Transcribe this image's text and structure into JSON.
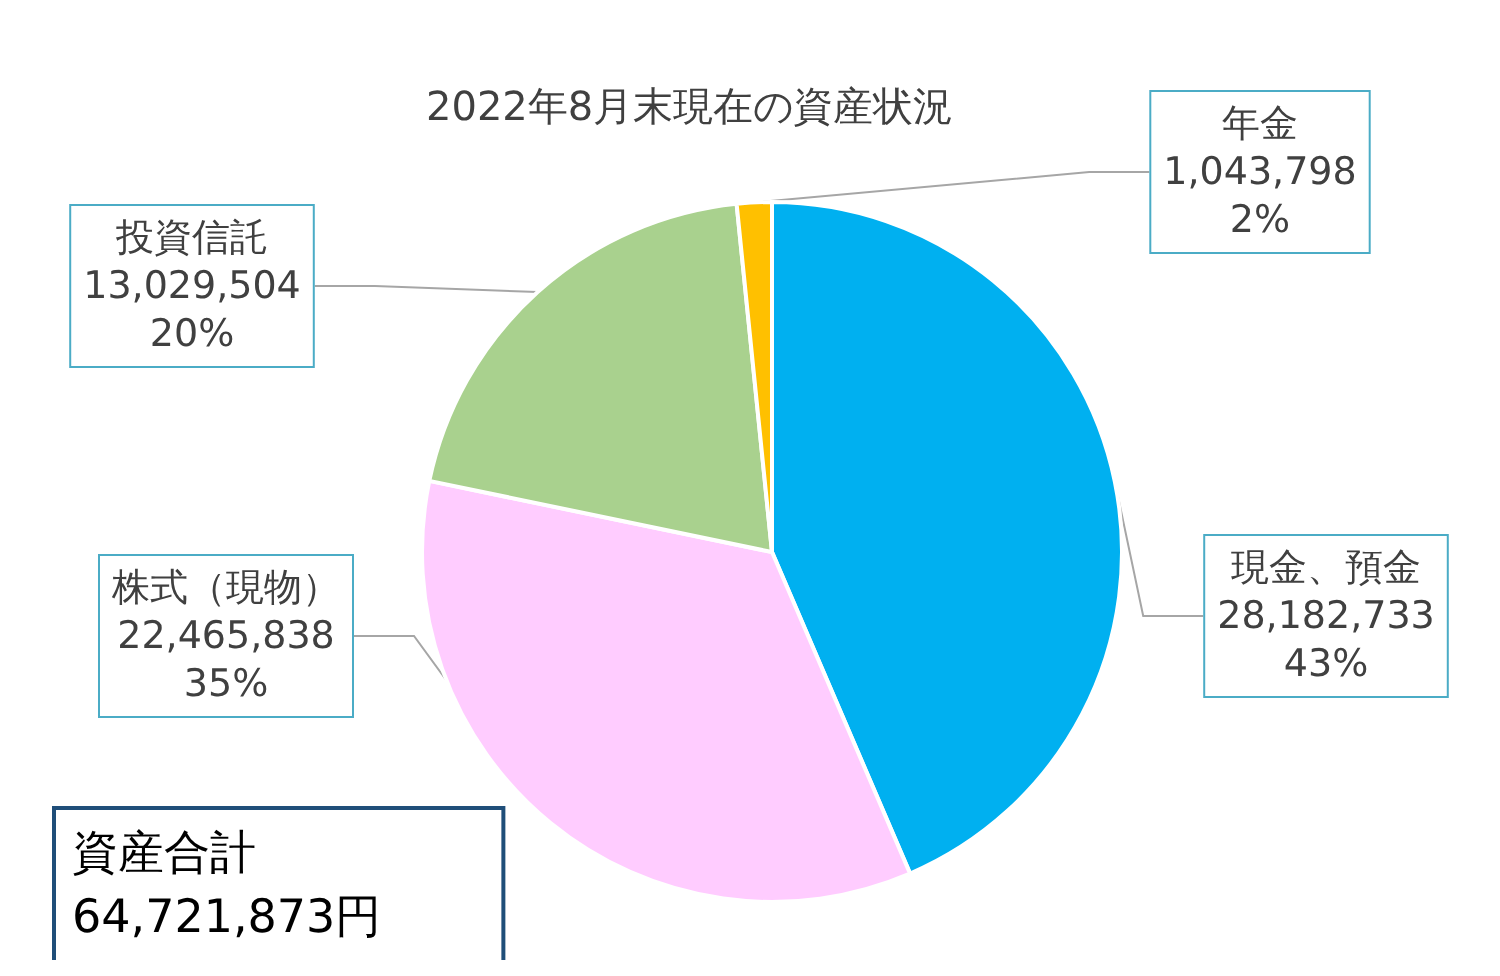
{
  "chart_data": {
    "type": "pie",
    "title": "2022年8月末現在の資産状況",
    "categories": [
      "現金、預金",
      "株式（現物）",
      "投資信託",
      "年金"
    ],
    "values": [
      28182733,
      22465838,
      13029504,
      1043798
    ],
    "colors": [
      "#00b0f0",
      "#ffccff",
      "#a9d18e",
      "#ffc000"
    ],
    "value_labels": [
      "28,182,733\n43%",
      "22,465,838\n35%",
      "13,029,504\n20%",
      "1,043,798\n2%"
    ],
    "annotations": [
      "資産合計\n64,721,873円"
    ]
  }
}
